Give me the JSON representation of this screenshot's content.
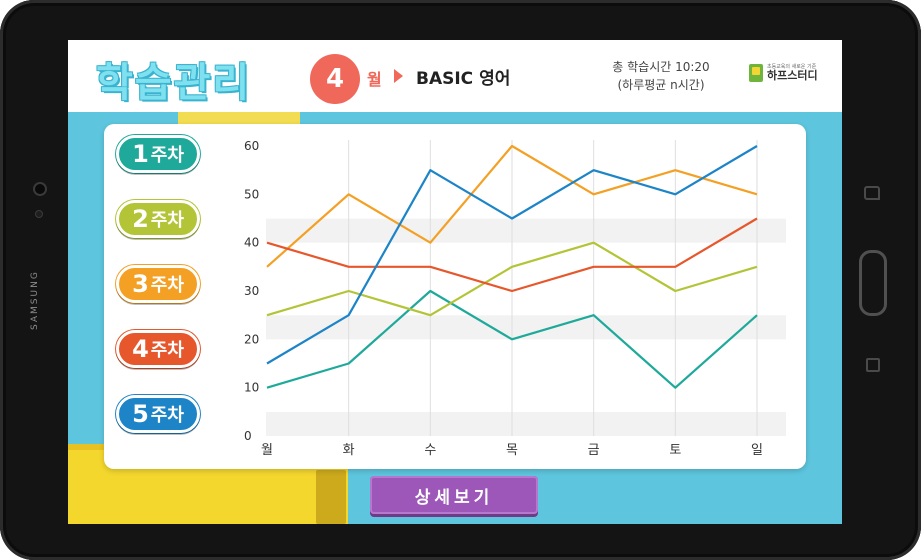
{
  "device": {
    "brand": "SAMSUNG"
  },
  "header": {
    "title": "학습관리",
    "month": "4",
    "month_unit": "월",
    "course": "BASIC 영어",
    "study_time_line1": "총 학습시간 10:20",
    "study_time_line2": "(하루평균 n시간)",
    "logo_sub": "초등교육의 새로운 기준",
    "logo_main": "하프스터디"
  },
  "weeks": [
    {
      "num": "1",
      "label": "주차",
      "color": "#1fa99b"
    },
    {
      "num": "2",
      "label": "주차",
      "color": "#b3c436"
    },
    {
      "num": "3",
      "label": "주차",
      "color": "#f3a024"
    },
    {
      "num": "4",
      "label": "주차",
      "color": "#e6572c"
    },
    {
      "num": "5",
      "label": "주차",
      "color": "#1d84c7"
    }
  ],
  "detail_button": "상세보기",
  "chart_data": {
    "type": "line",
    "categories": [
      "월",
      "화",
      "수",
      "목",
      "금",
      "토",
      "일"
    ],
    "ylim": [
      0,
      60
    ],
    "yticks": [
      0,
      10,
      20,
      30,
      40,
      50,
      60
    ],
    "grid": true,
    "series": [
      {
        "color": "#1fa99b",
        "values": [
          10,
          15,
          30,
          20,
          25,
          10,
          25
        ]
      },
      {
        "color": "#b3c436",
        "values": [
          25,
          30,
          25,
          35,
          40,
          30,
          35
        ]
      },
      {
        "color": "#f3a024",
        "values": [
          35,
          50,
          40,
          60,
          50,
          55,
          50
        ]
      },
      {
        "color": "#e6572c",
        "values": [
          40,
          35,
          35,
          30,
          35,
          35,
          45
        ]
      },
      {
        "color": "#1d84c7",
        "values": [
          15,
          25,
          55,
          45,
          55,
          50,
          60
        ]
      }
    ]
  }
}
